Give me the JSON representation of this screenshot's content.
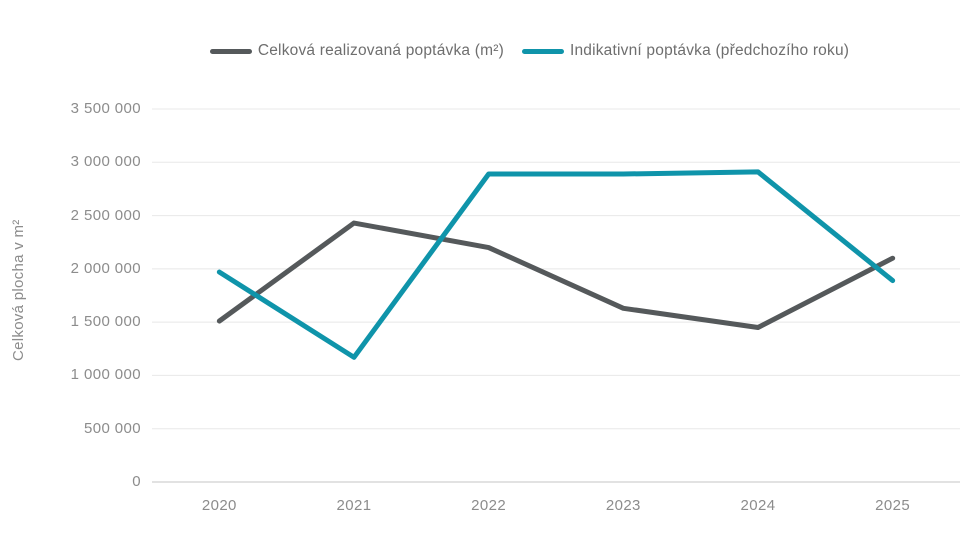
{
  "chart_data": {
    "type": "line",
    "title": "",
    "categories": [
      "2020",
      "2021",
      "2022",
      "2023",
      "2024",
      "2025"
    ],
    "series": [
      {
        "name": "Celková realizovaná poptávka (m²)",
        "color": "#55595b",
        "values": [
          1510000,
          2430000,
          2200000,
          1630000,
          1450000,
          2100000
        ]
      },
      {
        "name": "Indikativní poptávka (předchozího roku)",
        "color": "#0f94aa",
        "values": [
          1970000,
          1170000,
          2890000,
          2890000,
          2910000,
          1890000
        ]
      }
    ],
    "xlabel": "",
    "ylabel": "Celková plocha v m²",
    "ylim": [
      0,
      3500000
    ],
    "ytick_step": 500000,
    "y_tick_labels": [
      "0",
      "500 000",
      "1 000 000",
      "1 500 000",
      "2 000 000",
      "2 500 000",
      "3 000 000",
      "3 500 000"
    ],
    "grid": true,
    "legend_position": "top"
  },
  "colors": {
    "gridline": "#e8e8e8",
    "baseline": "#d8d8d8",
    "tick_text": "#8c8c8c",
    "legend_text": "#6e6e6e"
  }
}
